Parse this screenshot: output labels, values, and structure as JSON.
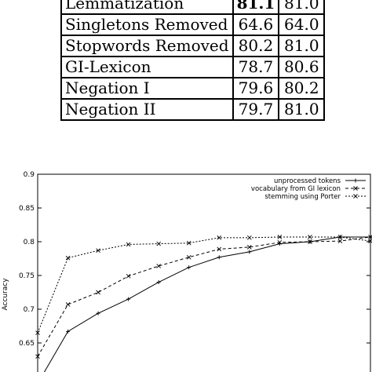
{
  "table": {
    "rows": [
      {
        "name": "Lemmatization",
        "a": "81.1",
        "b": "81.0",
        "bold_a": true
      },
      {
        "name": "Singletons Removed",
        "a": "64.6",
        "b": "64.0",
        "bold_a": false
      },
      {
        "name": "Stopwords Removed",
        "a": "80.2",
        "b": "81.0",
        "bold_a": false
      },
      {
        "name": "GI-Lexicon",
        "a": "78.7",
        "b": "80.6",
        "bold_a": false
      },
      {
        "name": "Negation I",
        "a": "79.6",
        "b": "80.2",
        "bold_a": false
      },
      {
        "name": "Negation II",
        "a": "79.7",
        "b": "81.0",
        "bold_a": false
      }
    ]
  },
  "chart_data": {
    "type": "line",
    "ylabel": "Accuracy",
    "ylim": [
      0.6,
      0.9
    ],
    "yticks": [
      "0.9",
      "0.85",
      "0.8",
      "0.75",
      "0.7",
      "0.65"
    ],
    "grid": false,
    "legend_position": "top-right",
    "x": [
      1,
      2,
      3,
      4,
      5,
      6,
      7,
      8,
      9,
      10,
      11,
      12
    ],
    "series": [
      {
        "name": "unprocessed tokens",
        "style": "solid",
        "marker": "+",
        "values": [
          0.59,
          0.667,
          0.694,
          0.715,
          0.74,
          0.762,
          0.777,
          0.785,
          0.797,
          0.8,
          0.807,
          0.807
        ]
      },
      {
        "name": "vocabulary from GI lexicon",
        "style": "dashed",
        "marker": "x",
        "values": [
          0.63,
          0.707,
          0.725,
          0.749,
          0.764,
          0.777,
          0.789,
          0.792,
          0.799,
          0.8,
          0.801,
          0.807
        ]
      },
      {
        "name": "stemming using Porter",
        "style": "dotted",
        "marker": "x",
        "values": [
          0.665,
          0.776,
          0.787,
          0.796,
          0.797,
          0.798,
          0.806,
          0.806,
          0.807,
          0.807,
          0.807,
          0.801
        ]
      }
    ]
  }
}
